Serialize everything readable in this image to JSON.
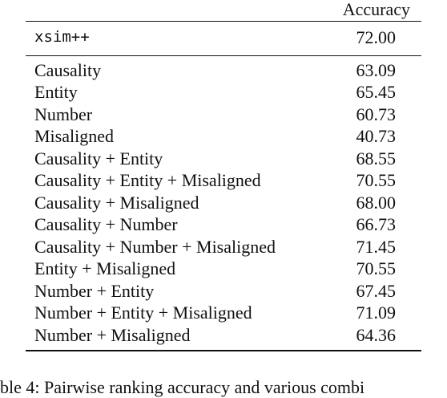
{
  "table": {
    "header": {
      "metric": "Accuracy"
    },
    "baseline": {
      "name": "xsim++",
      "value": "72.00"
    },
    "rows": [
      {
        "name": "Causality",
        "value": "63.09"
      },
      {
        "name": "Entity",
        "value": "65.45"
      },
      {
        "name": "Number",
        "value": "60.73"
      },
      {
        "name": "Misaligned",
        "value": "40.73"
      },
      {
        "name": "Causality + Entity",
        "value": "68.55"
      },
      {
        "name": "Causality + Entity + Misaligned",
        "value": "70.55"
      },
      {
        "name": "Causality + Misaligned",
        "value": "68.00"
      },
      {
        "name": "Causality + Number",
        "value": "66.73"
      },
      {
        "name": "Causality + Number + Misaligned",
        "value": "71.45"
      },
      {
        "name": "Entity + Misaligned",
        "value": "70.55"
      },
      {
        "name": "Number + Entity",
        "value": "67.45"
      },
      {
        "name": "Number + Entity + Misaligned",
        "value": "71.09"
      },
      {
        "name": "Number + Misaligned",
        "value": "64.36"
      }
    ]
  },
  "caption": {
    "text": "ble 4: Pairwise ranking accuracy and various combi"
  }
}
